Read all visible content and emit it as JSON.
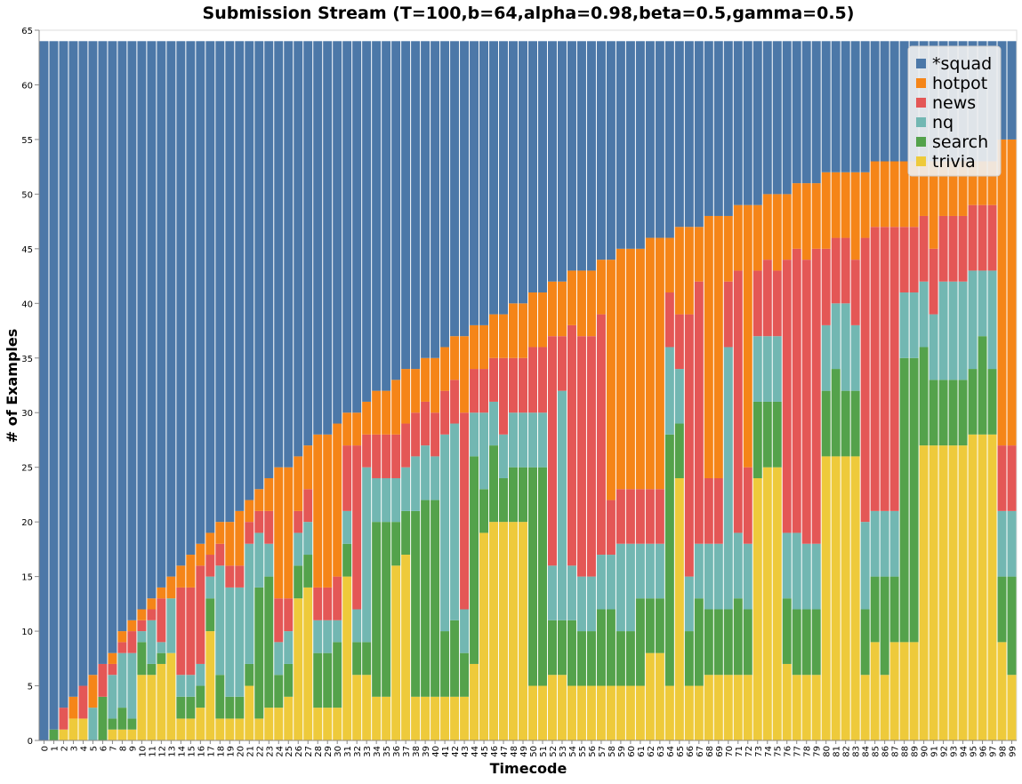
{
  "chart_data": {
    "type": "stacked_bar",
    "title": "Submission Stream (T=100,b=64,alpha=0.98,beta=0.5,gamma=0.5)",
    "x_label": "Timecode",
    "y_label": "# of Examples",
    "categories": [
      "0",
      "1",
      "2",
      "3",
      "4",
      "5",
      "6",
      "7",
      "8",
      "9",
      "10",
      "11",
      "12",
      "13",
      "14",
      "15",
      "16",
      "17",
      "18",
      "19",
      "20",
      "21",
      "22",
      "23",
      "24",
      "25",
      "26",
      "27",
      "28",
      "29",
      "30",
      "31",
      "32",
      "33",
      "34",
      "35",
      "36",
      "37",
      "38",
      "39",
      "40",
      "41",
      "42",
      "43",
      "44",
      "45",
      "46",
      "47",
      "48",
      "49",
      "50",
      "51",
      "52",
      "53",
      "54",
      "55",
      "56",
      "57",
      "58",
      "59",
      "60",
      "61",
      "62",
      "63",
      "64",
      "65",
      "66",
      "67",
      "68",
      "69",
      "70",
      "71",
      "72",
      "73",
      "74",
      "75",
      "76",
      "77",
      "78",
      "79",
      "80",
      "81",
      "82",
      "83",
      "84",
      "85",
      "86",
      "87",
      "88",
      "89",
      "90",
      "91",
      "92",
      "93",
      "94",
      "95",
      "96",
      "97",
      "98",
      "99"
    ],
    "series": [
      {
        "name": "*squad",
        "color": "#4c78a8",
        "values": [
          64,
          63,
          61,
          60,
          59,
          58,
          57,
          56,
          54,
          53,
          52,
          51,
          50,
          49,
          48,
          47,
          46,
          45,
          44,
          44,
          43,
          42,
          41,
          40,
          39,
          39,
          38,
          37,
          36,
          36,
          35,
          34,
          34,
          33,
          32,
          32,
          31,
          30,
          30,
          29,
          29,
          28,
          27,
          27,
          26,
          26,
          25,
          25,
          24,
          24,
          23,
          23,
          22,
          22,
          21,
          21,
          21,
          20,
          20,
          19,
          19,
          19,
          18,
          18,
          18,
          17,
          17,
          17,
          16,
          16,
          16,
          15,
          15,
          15,
          14,
          14,
          14,
          13,
          13,
          13,
          12,
          12,
          12,
          12,
          12,
          11,
          11,
          11,
          11,
          11,
          11,
          11,
          11,
          11,
          11,
          11,
          11,
          11,
          9,
          9
        ]
      },
      {
        "name": "hotpot",
        "color": "#f58518",
        "values": [
          0,
          0,
          0,
          2,
          0,
          3,
          0,
          1,
          1,
          1,
          1,
          1,
          1,
          2,
          2,
          3,
          2,
          2,
          2,
          4,
          5,
          2,
          2,
          3,
          12,
          12,
          5,
          4,
          14,
          14,
          14,
          3,
          3,
          3,
          4,
          4,
          5,
          5,
          4,
          4,
          5,
          4,
          4,
          7,
          4,
          4,
          4,
          4,
          5,
          5,
          5,
          5,
          5,
          5,
          5,
          6,
          6,
          5,
          22,
          22,
          22,
          22,
          23,
          23,
          5,
          8,
          8,
          5,
          24,
          24,
          6,
          6,
          24,
          6,
          6,
          7,
          6,
          6,
          7,
          6,
          7,
          6,
          6,
          8,
          6,
          6,
          6,
          6,
          6,
          6,
          5,
          8,
          5,
          5,
          5,
          4,
          4,
          4,
          28,
          28
        ]
      },
      {
        "name": "news",
        "color": "#e45756",
        "values": [
          0,
          0,
          2,
          0,
          3,
          0,
          3,
          1,
          1,
          2,
          1,
          1,
          4,
          0,
          8,
          8,
          9,
          2,
          2,
          2,
          2,
          2,
          2,
          3,
          4,
          3,
          2,
          3,
          3,
          3,
          4,
          6,
          15,
          3,
          4,
          4,
          4,
          4,
          4,
          4,
          4,
          4,
          4,
          18,
          4,
          4,
          4,
          7,
          5,
          5,
          6,
          6,
          21,
          5,
          22,
          22,
          22,
          22,
          5,
          5,
          5,
          5,
          5,
          5,
          5,
          5,
          24,
          24,
          6,
          6,
          6,
          24,
          7,
          6,
          7,
          6,
          25,
          26,
          26,
          27,
          7,
          6,
          6,
          6,
          26,
          26,
          26,
          26,
          6,
          6,
          6,
          6,
          6,
          6,
          6,
          6,
          6,
          6,
          6,
          6
        ]
      },
      {
        "name": "nq",
        "color": "#72b7b2",
        "values": [
          0,
          0,
          0,
          0,
          0,
          3,
          0,
          4,
          5,
          6,
          1,
          4,
          1,
          5,
          2,
          2,
          2,
          2,
          10,
          10,
          10,
          11,
          5,
          3,
          3,
          3,
          3,
          3,
          3,
          3,
          2,
          3,
          3,
          16,
          4,
          4,
          4,
          4,
          5,
          5,
          4,
          18,
          18,
          4,
          4,
          7,
          4,
          4,
          5,
          5,
          5,
          5,
          5,
          21,
          5,
          5,
          5,
          5,
          5,
          8,
          8,
          5,
          5,
          5,
          8,
          5,
          5,
          5,
          6,
          6,
          24,
          6,
          6,
          6,
          6,
          6,
          6,
          7,
          6,
          6,
          6,
          6,
          8,
          6,
          8,
          6,
          6,
          6,
          6,
          6,
          6,
          6,
          9,
          9,
          9,
          9,
          6,
          9,
          6,
          6
        ]
      },
      {
        "name": "search",
        "color": "#54a24b",
        "values": [
          0,
          1,
          0,
          0,
          0,
          0,
          4,
          1,
          2,
          1,
          3,
          1,
          1,
          0,
          2,
          2,
          2,
          3,
          4,
          2,
          2,
          2,
          12,
          12,
          3,
          3,
          3,
          3,
          5,
          5,
          6,
          3,
          3,
          3,
          16,
          16,
          4,
          4,
          17,
          18,
          18,
          6,
          7,
          4,
          19,
          4,
          7,
          4,
          5,
          5,
          20,
          20,
          5,
          5,
          6,
          5,
          5,
          7,
          7,
          5,
          5,
          8,
          5,
          5,
          23,
          5,
          5,
          8,
          6,
          6,
          6,
          7,
          6,
          7,
          6,
          6,
          6,
          6,
          6,
          6,
          6,
          8,
          6,
          6,
          6,
          6,
          9,
          6,
          26,
          26,
          9,
          6,
          6,
          6,
          6,
          6,
          9,
          6,
          6,
          9
        ]
      },
      {
        "name": "trivia",
        "color": "#eeca3b",
        "values": [
          0,
          0,
          1,
          2,
          2,
          0,
          0,
          1,
          1,
          1,
          6,
          6,
          7,
          8,
          2,
          2,
          3,
          10,
          2,
          2,
          2,
          5,
          2,
          3,
          3,
          4,
          13,
          14,
          3,
          3,
          3,
          15,
          6,
          6,
          4,
          4,
          16,
          17,
          4,
          4,
          4,
          4,
          4,
          4,
          7,
          19,
          20,
          20,
          20,
          20,
          5,
          5,
          6,
          6,
          5,
          5,
          5,
          5,
          5,
          5,
          5,
          5,
          8,
          8,
          5,
          24,
          5,
          5,
          6,
          6,
          6,
          6,
          6,
          24,
          25,
          25,
          7,
          6,
          6,
          6,
          26,
          26,
          26,
          26,
          6,
          9,
          6,
          9,
          9,
          9,
          27,
          27,
          27,
          27,
          27,
          28,
          28,
          28,
          9,
          6
        ]
      }
    ],
    "ylim": [
      0,
      65
    ],
    "yticks": [
      0,
      5,
      10,
      15,
      20,
      25,
      30,
      35,
      40,
      45,
      50,
      55,
      60,
      65
    ],
    "legend": "top-right",
    "stacked": true
  }
}
